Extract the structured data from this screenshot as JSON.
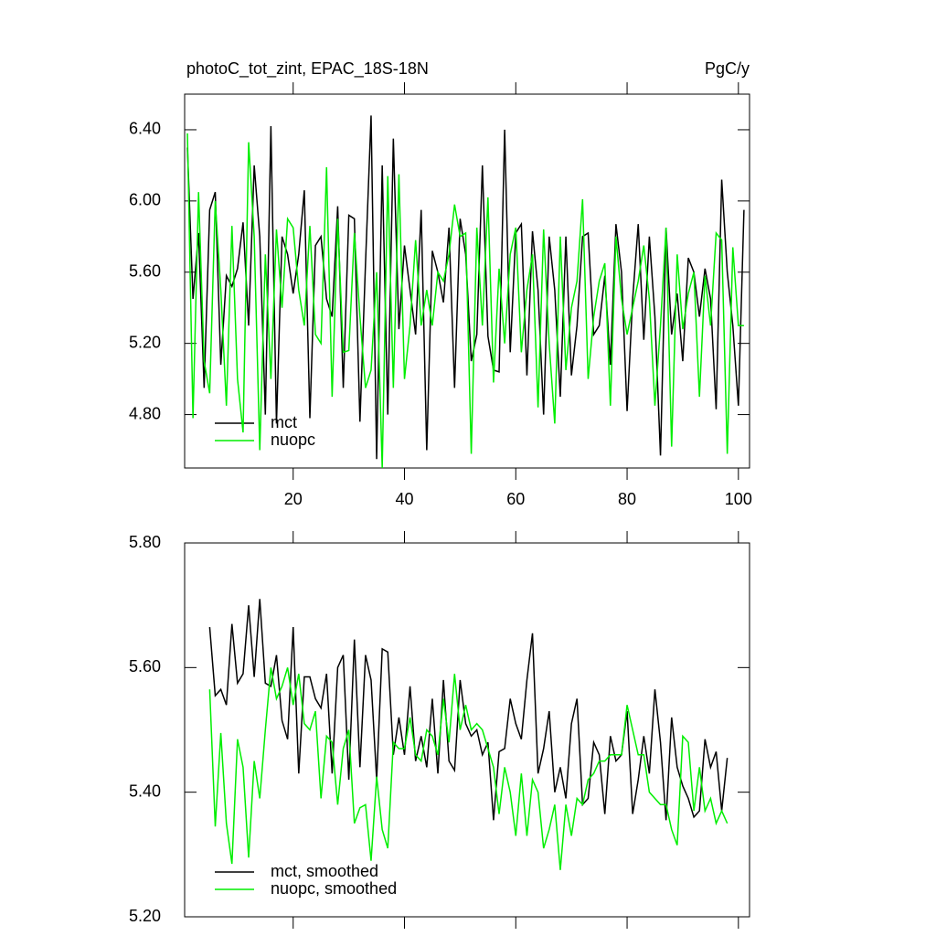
{
  "chart_data": [
    {
      "type": "line",
      "title": "photoC_tot_zint, EPAC_18S-18N",
      "units": "PgC/y",
      "x": [
        1,
        2,
        3,
        4,
        5,
        6,
        7,
        8,
        9,
        10,
        11,
        12,
        13,
        14,
        15,
        16,
        17,
        18,
        19,
        20,
        21,
        22,
        23,
        24,
        25,
        26,
        27,
        28,
        29,
        30,
        31,
        32,
        33,
        34,
        35,
        36,
        37,
        38,
        39,
        40,
        41,
        42,
        43,
        44,
        45,
        46,
        47,
        48,
        49,
        50,
        51,
        52,
        53,
        54,
        55,
        56,
        57,
        58,
        59,
        60,
        61,
        62,
        63,
        64,
        65,
        66,
        67,
        68,
        69,
        70,
        71,
        72,
        73,
        74,
        75,
        76,
        77,
        78,
        79,
        80,
        81,
        82,
        83,
        84,
        85,
        86,
        87,
        88,
        89,
        90,
        91,
        92,
        93,
        94,
        95,
        96,
        97,
        98,
        99,
        100,
        101
      ],
      "series": [
        {
          "name": "mct",
          "color": "#000000",
          "values": [
            6.3,
            5.45,
            5.82,
            4.95,
            5.95,
            6.05,
            5.08,
            5.58,
            5.52,
            5.62,
            5.88,
            5.3,
            6.2,
            5.8,
            4.8,
            6.42,
            4.75,
            5.8,
            5.7,
            5.48,
            5.7,
            6.06,
            4.78,
            5.75,
            5.8,
            5.45,
            5.35,
            5.97,
            4.95,
            5.92,
            5.9,
            4.76,
            5.65,
            6.48,
            4.55,
            6.2,
            4.8,
            6.35,
            5.28,
            5.75,
            5.5,
            5.25,
            5.95,
            4.6,
            5.72,
            5.6,
            5.43,
            5.85,
            4.95,
            5.9,
            5.7,
            5.1,
            5.25,
            6.2,
            5.24,
            5.05,
            5.04,
            6.4,
            5.15,
            5.82,
            5.87,
            5.02,
            5.83,
            5.5,
            4.8,
            5.8,
            5.5,
            4.9,
            5.8,
            5.02,
            5.3,
            5.8,
            5.82,
            5.25,
            5.3,
            5.58,
            5.08,
            5.87,
            5.6,
            4.82,
            5.45,
            5.87,
            5.22,
            5.8,
            5.35,
            4.57,
            5.85,
            5.25,
            5.48,
            5.1,
            5.68,
            5.6,
            5.35,
            5.62,
            5.45,
            4.83,
            6.12,
            5.6,
            5.3,
            4.85,
            5.95
          ]
        },
        {
          "name": "nuopc",
          "color": "#00ee00",
          "values": [
            6.38,
            4.78,
            6.05,
            5.1,
            4.92,
            6.0,
            5.5,
            4.85,
            5.86,
            5.0,
            4.7,
            6.33,
            5.8,
            4.6,
            5.7,
            5.0,
            5.84,
            5.4,
            5.9,
            5.85,
            5.5,
            5.3,
            5.86,
            5.25,
            5.2,
            6.19,
            4.9,
            5.9,
            5.15,
            5.16,
            5.82,
            5.35,
            4.95,
            5.05,
            5.6,
            4.5,
            6.14,
            4.95,
            6.15,
            5.0,
            5.3,
            5.78,
            5.3,
            5.5,
            5.3,
            5.6,
            5.55,
            5.7,
            5.98,
            5.8,
            5.82,
            4.58,
            5.85,
            5.3,
            6.02,
            4.98,
            5.62,
            5.2,
            5.7,
            5.85,
            5.15,
            5.5,
            5.7,
            4.84,
            5.84,
            5.2,
            4.75,
            5.8,
            5.05,
            5.4,
            5.55,
            6.01,
            5.0,
            5.35,
            5.55,
            5.65,
            4.85,
            5.8,
            5.45,
            5.25,
            5.4,
            5.55,
            5.75,
            5.45,
            4.85,
            5.3,
            5.85,
            4.62,
            5.7,
            5.28,
            5.48,
            5.6,
            4.9,
            5.58,
            5.3,
            5.82,
            5.78,
            4.58,
            5.74,
            5.3,
            5.3
          ]
        }
      ],
      "xlim": [
        0.5,
        102
      ],
      "xticks": [
        20,
        40,
        60,
        80,
        100
      ],
      "xtick_labels": true,
      "ylim": [
        4.5,
        6.6
      ],
      "yticks": [
        {
          "value": 4.8,
          "label": "4.80"
        },
        {
          "value": 5.2,
          "label": "5.20"
        },
        {
          "value": 5.6,
          "label": "5.60"
        },
        {
          "value": 6.0,
          "label": "6.00"
        },
        {
          "value": 6.4,
          "label": "6.40"
        }
      ],
      "legend": "lower-left"
    },
    {
      "type": "line",
      "x": [
        5,
        6,
        7,
        8,
        9,
        10,
        11,
        12,
        13,
        14,
        15,
        16,
        17,
        18,
        19,
        20,
        21,
        22,
        23,
        24,
        25,
        26,
        27,
        28,
        29,
        30,
        31,
        32,
        33,
        34,
        35,
        36,
        37,
        38,
        39,
        40,
        41,
        42,
        43,
        44,
        45,
        46,
        47,
        48,
        49,
        50,
        51,
        52,
        53,
        54,
        55,
        56,
        57,
        58,
        59,
        60,
        61,
        62,
        63,
        64,
        65,
        66,
        67,
        68,
        69,
        70,
        71,
        72,
        73,
        74,
        75,
        76,
        77,
        78,
        79,
        80,
        81,
        82,
        83,
        84,
        85,
        86,
        87,
        88,
        89,
        90,
        91,
        92,
        93,
        94,
        95,
        96,
        97,
        98
      ],
      "series": [
        {
          "name": "mct, smoothed",
          "color": "#000000",
          "values": [
            5.665,
            5.555,
            5.565,
            5.54,
            5.67,
            5.575,
            5.59,
            5.7,
            5.585,
            5.71,
            5.575,
            5.57,
            5.62,
            5.515,
            5.485,
            5.665,
            5.43,
            5.585,
            5.585,
            5.55,
            5.535,
            5.59,
            5.43,
            5.6,
            5.62,
            5.42,
            5.645,
            5.44,
            5.62,
            5.58,
            5.42,
            5.63,
            5.625,
            5.46,
            5.52,
            5.46,
            5.57,
            5.45,
            5.49,
            5.44,
            5.55,
            5.43,
            5.58,
            5.45,
            5.435,
            5.58,
            5.51,
            5.49,
            5.5,
            5.46,
            5.48,
            5.355,
            5.465,
            5.47,
            5.55,
            5.51,
            5.485,
            5.58,
            5.655,
            5.43,
            5.47,
            5.53,
            5.4,
            5.44,
            5.39,
            5.51,
            5.55,
            5.38,
            5.39,
            5.48,
            5.46,
            5.365,
            5.49,
            5.45,
            5.46,
            5.53,
            5.365,
            5.42,
            5.49,
            5.43,
            5.565,
            5.48,
            5.355,
            5.52,
            5.44,
            5.41,
            5.39,
            5.36,
            5.37,
            5.485,
            5.44,
            5.465,
            5.37,
            5.455
          ]
        },
        {
          "name": "nuopc, smoothed",
          "color": "#00ee00",
          "values": [
            5.565,
            5.345,
            5.495,
            5.35,
            5.285,
            5.485,
            5.44,
            5.295,
            5.45,
            5.39,
            5.5,
            5.6,
            5.55,
            5.57,
            5.6,
            5.54,
            5.59,
            5.51,
            5.5,
            5.53,
            5.39,
            5.49,
            5.48,
            5.38,
            5.47,
            5.5,
            5.35,
            5.375,
            5.38,
            5.29,
            5.425,
            5.34,
            5.31,
            5.48,
            5.47,
            5.47,
            5.52,
            5.46,
            5.45,
            5.5,
            5.49,
            5.46,
            5.55,
            5.48,
            5.59,
            5.5,
            5.54,
            5.5,
            5.51,
            5.5,
            5.47,
            5.44,
            5.365,
            5.44,
            5.4,
            5.33,
            5.43,
            5.33,
            5.42,
            5.4,
            5.31,
            5.34,
            5.38,
            5.275,
            5.38,
            5.33,
            5.39,
            5.38,
            5.42,
            5.43,
            5.45,
            5.45,
            5.46,
            5.46,
            5.46,
            5.54,
            5.5,
            5.46,
            5.46,
            5.4,
            5.39,
            5.38,
            5.38,
            5.34,
            5.315,
            5.49,
            5.48,
            5.37,
            5.44,
            5.37,
            5.39,
            5.35,
            5.37,
            5.35
          ]
        }
      ],
      "xlim": [
        0.5,
        102
      ],
      "xticks": [
        20,
        40,
        60,
        80,
        100
      ],
      "xtick_labels": false,
      "ylim": [
        5.2,
        5.8
      ],
      "yticks": [
        {
          "value": 5.2,
          "label": "5.20"
        },
        {
          "value": 5.4,
          "label": "5.40"
        },
        {
          "value": 5.6,
          "label": "5.60"
        },
        {
          "value": 5.8,
          "label": "5.80"
        }
      ],
      "legend": "lower-left"
    }
  ]
}
